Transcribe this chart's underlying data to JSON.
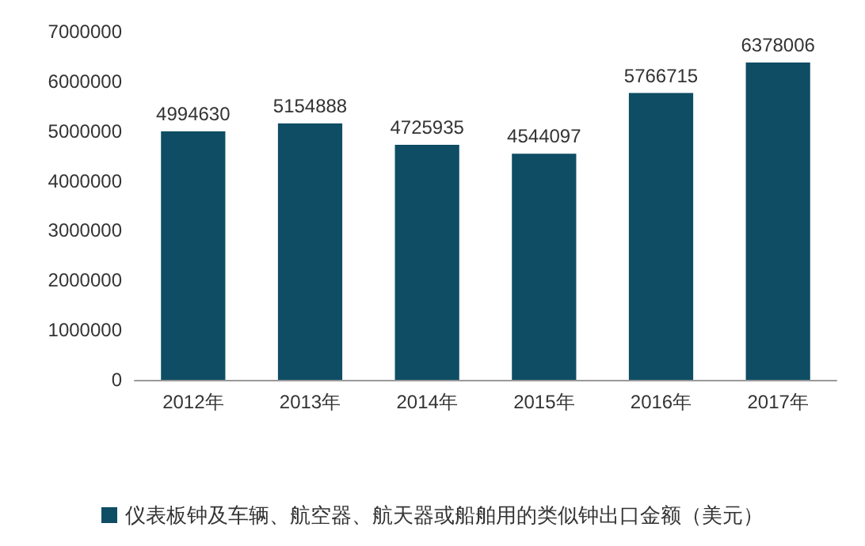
{
  "chart_data": {
    "type": "bar",
    "categories": [
      "2012年",
      "2013年",
      "2014年",
      "2015年",
      "2016年",
      "2017年"
    ],
    "series": [
      {
        "name": "仪表板钟及车辆、航空器、航天器或船舶用的类似钟出口金额（美元）",
        "color": "#0e4d64",
        "values": [
          4994630,
          5154888,
          4725935,
          4544097,
          5766715,
          6378006
        ]
      }
    ],
    "ylim": [
      0,
      7000000
    ],
    "yticks": [
      0,
      1000000,
      2000000,
      3000000,
      4000000,
      5000000,
      6000000,
      7000000
    ],
    "data_labels": true,
    "grid": false,
    "legend": "bottom"
  }
}
